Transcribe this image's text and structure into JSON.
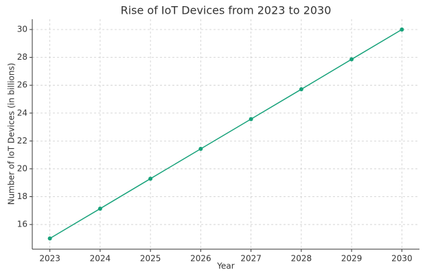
{
  "chart_data": {
    "type": "line",
    "title": "Rise of IoT Devices from 2023 to 2030",
    "x_label": "Year",
    "y_label": "Number of IoT Devices (in billions)",
    "x": [
      2023,
      2024,
      2025,
      2026,
      2027,
      2028,
      2029,
      2030
    ],
    "series": [
      {
        "name": "IoT Devices",
        "color": "#17a27a",
        "values": [
          15,
          17.14,
          19.29,
          21.43,
          23.57,
          25.71,
          27.86,
          30
        ]
      }
    ],
    "xlim": [
      2022.65,
      2030.35
    ],
    "ylim": [
      14.23,
      30.74
    ],
    "xticks": [
      2023,
      2024,
      2025,
      2026,
      2027,
      2028,
      2029,
      2030
    ],
    "yticks": [
      16,
      18,
      20,
      22,
      24,
      26,
      28,
      30
    ],
    "grid": true
  }
}
